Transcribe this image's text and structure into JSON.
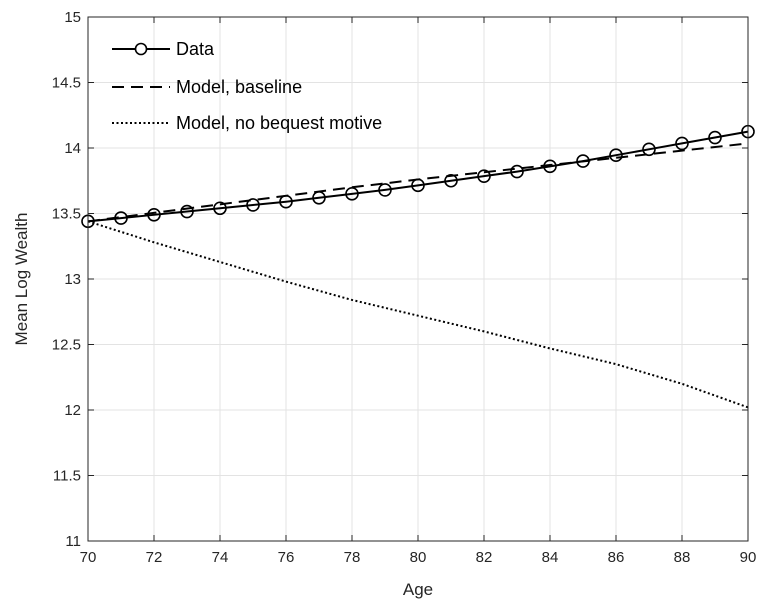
{
  "chart_data": {
    "type": "line",
    "title": "",
    "xlabel": "Age",
    "ylabel": "Mean Log Wealth",
    "xlim": [
      70,
      90
    ],
    "ylim": [
      11,
      15
    ],
    "xticks": [
      70,
      72,
      74,
      76,
      78,
      80,
      82,
      84,
      86,
      88,
      90
    ],
    "xtick_labels": [
      "70",
      "72",
      "74",
      "76",
      "78",
      "80",
      "82",
      "84",
      "86",
      "88",
      "90"
    ],
    "yticks": [
      11,
      11.5,
      12,
      12.5,
      13,
      13.5,
      14,
      14.5,
      15
    ],
    "ytick_labels": [
      "11",
      "11.5",
      "12",
      "12.5",
      "13",
      "13.5",
      "14",
      "14.5",
      "15"
    ],
    "grid": true,
    "legend_position": "top-left",
    "series": [
      {
        "name": "Data",
        "style": "solid-circle",
        "color": "#000000",
        "x": [
          70,
          71,
          72,
          73,
          74,
          75,
          76,
          77,
          78,
          79,
          80,
          81,
          82,
          83,
          84,
          85,
          86,
          87,
          88,
          89,
          90
        ],
        "y": [
          13.44,
          13.465,
          13.49,
          13.515,
          13.54,
          13.565,
          13.59,
          13.62,
          13.65,
          13.68,
          13.715,
          13.75,
          13.785,
          13.82,
          13.86,
          13.9,
          13.945,
          13.99,
          14.035,
          14.08,
          14.125
        ]
      },
      {
        "name": "Model, baseline",
        "style": "dashed",
        "color": "#000000",
        "x": [
          70,
          72,
          74,
          76,
          78,
          80,
          82,
          84,
          86,
          88,
          90
        ],
        "y": [
          13.44,
          13.505,
          13.57,
          13.635,
          13.7,
          13.76,
          13.815,
          13.87,
          13.925,
          13.98,
          14.035
        ]
      },
      {
        "name": "Model, no bequest motive",
        "style": "dotted",
        "color": "#000000",
        "x": [
          70,
          72,
          74,
          76,
          78,
          80,
          82,
          84,
          86,
          88,
          90
        ],
        "y": [
          13.44,
          13.28,
          13.13,
          12.98,
          12.84,
          12.72,
          12.6,
          12.47,
          12.35,
          12.2,
          12.02
        ]
      }
    ]
  }
}
